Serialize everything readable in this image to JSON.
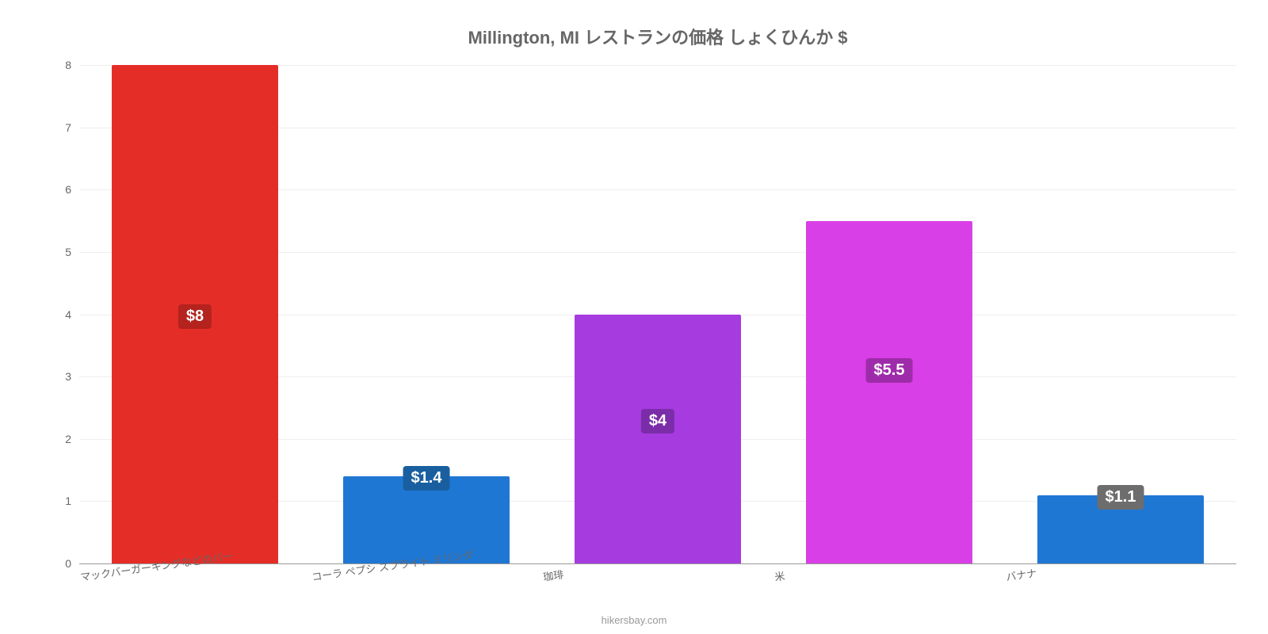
{
  "chart": {
    "type": "bar",
    "title": "Millington, MI レストランの価格 しょくひんか $",
    "title_fontsize": 22,
    "title_color": "#666666",
    "background_color": "#ffffff",
    "grid_color": "#eeeeee",
    "axis_color": "#999999",
    "tick_label_color": "#666666",
    "tick_fontsize": 14,
    "xlabel_fontsize": 13,
    "xlabel_rotation_deg": -8,
    "ylim": [
      0,
      8
    ],
    "ytick_step": 1,
    "bar_width_pct": 72,
    "value_badge_fontsize": 20,
    "source": "hikersbay.com",
    "categories": [
      "マックバーガーキングなどのバー",
      "コーラ ペプシ スプライト ミリンダ",
      "珈琲",
      "米",
      "バナナ"
    ],
    "values": [
      8,
      1.4,
      4,
      5.5,
      1.1
    ],
    "value_labels": [
      "$8",
      "$1.4",
      "$4",
      "$5.5",
      "$1.1"
    ],
    "bar_colors": [
      "#e52d27",
      "#1f77d4",
      "#a63be0",
      "#d93fe6",
      "#1f77d4"
    ],
    "badge_bg_colors": [
      "#b4231e",
      "#195f9f",
      "#7b2ca8",
      "#9e2caa",
      "#6d6d6d"
    ],
    "badge_top_pct": [
      48,
      -2,
      38,
      40,
      -2
    ]
  }
}
